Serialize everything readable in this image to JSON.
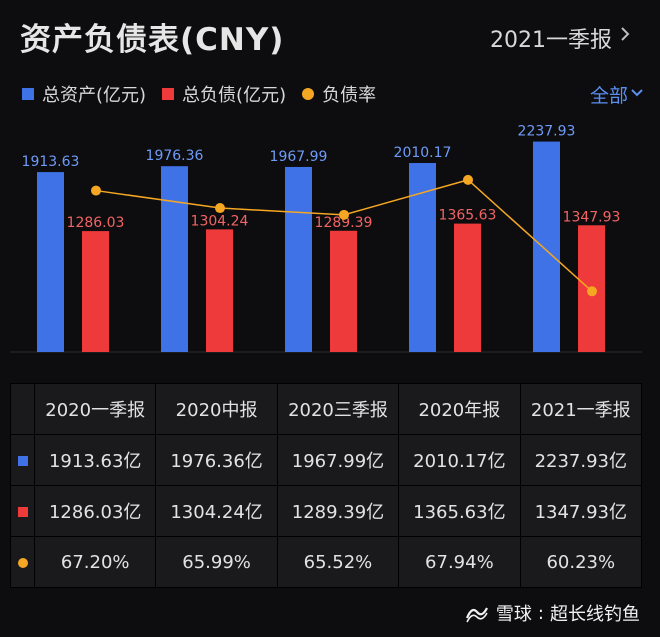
{
  "header": {
    "title": "资产负债表(CNY)",
    "period": "2021一季报"
  },
  "legend": {
    "items": [
      {
        "label": "总资产(亿元)",
        "color": "#3f72e6",
        "shape": "square"
      },
      {
        "label": "总负债(亿元)",
        "color": "#ee3a3a",
        "shape": "square"
      },
      {
        "label": "负债率",
        "color": "#f5a623",
        "shape": "dot"
      }
    ],
    "filter_label": "全部"
  },
  "chart_data": {
    "type": "bar",
    "categories": [
      "2020一季报",
      "2020中报",
      "2020三季报",
      "2020年报",
      "2021一季报"
    ],
    "series": [
      {
        "name": "总资产(亿元)",
        "type": "bar",
        "color": "#3f72e6",
        "label_color": "#6f9bf7",
        "values": [
          1913.63,
          1976.36,
          1967.99,
          2010.17,
          2237.93
        ]
      },
      {
        "name": "总负债(亿元)",
        "type": "bar",
        "color": "#ee3a3a",
        "label_color": "#f26464",
        "values": [
          1286.03,
          1304.24,
          1289.39,
          1365.63,
          1347.93
        ]
      },
      {
        "name": "负债率",
        "type": "line",
        "color": "#f5a623",
        "values": [
          67.2,
          65.99,
          65.52,
          67.94,
          60.23
        ]
      }
    ],
    "ylim": [
      0,
      2340
    ]
  },
  "table": {
    "headers": [
      "2020一季报",
      "2020中报",
      "2020三季报",
      "2020年报",
      "2021一季报"
    ],
    "rows": [
      {
        "marker": "square",
        "color": "#3f72e6",
        "cells": [
          "1913.63亿",
          "1976.36亿",
          "1967.99亿",
          "2010.17亿",
          "2237.93亿"
        ]
      },
      {
        "marker": "square",
        "color": "#ee3a3a",
        "cells": [
          "1286.03亿",
          "1304.24亿",
          "1289.39亿",
          "1365.63亿",
          "1347.93亿"
        ]
      },
      {
        "marker": "dot",
        "color": "#f5a623",
        "cells": [
          "67.20%",
          "65.99%",
          "65.52%",
          "67.94%",
          "60.23%"
        ]
      }
    ]
  },
  "footer": {
    "brand": "雪球",
    "author": "超长线钓鱼",
    "separator": ":"
  }
}
